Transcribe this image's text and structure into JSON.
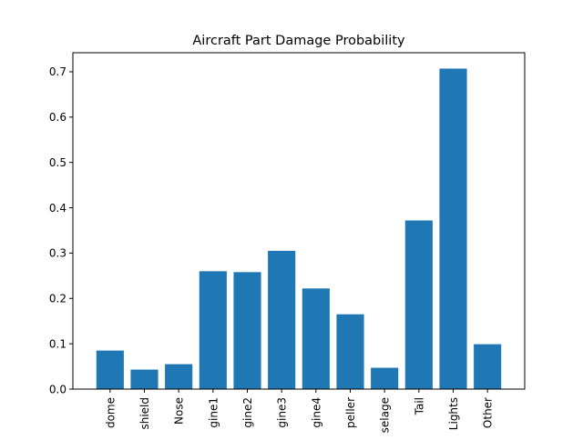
{
  "chart_data": {
    "type": "bar",
    "title": "Aircraft Part Damage Probability",
    "xlabel": "",
    "ylabel": "",
    "categories": [
      "dome",
      "shield",
      "Nose",
      "gine1",
      "gine2",
      "gine3",
      "gine4",
      "peller",
      "selage",
      "Tail",
      "Lights",
      "Other"
    ],
    "values": [
      0.085,
      0.043,
      0.055,
      0.26,
      0.258,
      0.305,
      0.222,
      0.165,
      0.047,
      0.372,
      0.707,
      0.099
    ],
    "ylim": [
      0,
      0.742
    ],
    "yticks": [
      "0.0",
      "0.1",
      "0.2",
      "0.3",
      "0.4",
      "0.5",
      "0.6",
      "0.7"
    ],
    "grid": false,
    "legend": "none",
    "bar_color": "#1f77b4"
  }
}
